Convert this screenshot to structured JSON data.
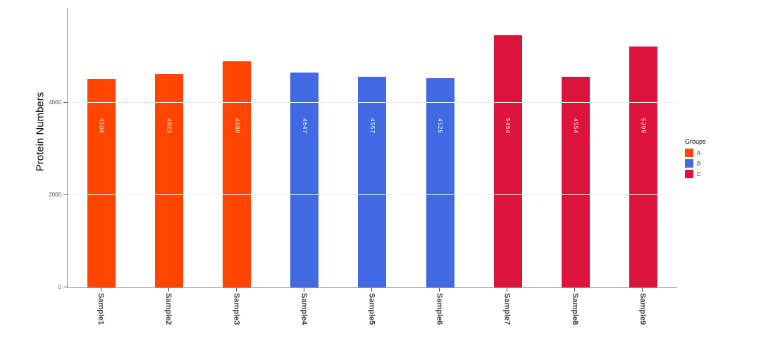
{
  "figure": {
    "ylabel": "Protein Numbers"
  },
  "chart_data": {
    "type": "bar",
    "title": "",
    "xlabel": "",
    "ylabel": "Protein Numbers",
    "categories": [
      "Sample1",
      "Sample2",
      "Sample3",
      "Sample4",
      "Sample5",
      "Sample6",
      "Sample7",
      "Sample8",
      "Sample9"
    ],
    "values": [
      4508,
      4623,
      4888,
      4647,
      4557,
      4526,
      5454,
      4554,
      5209
    ],
    "groups": [
      "A",
      "A",
      "A",
      "B",
      "B",
      "B",
      "C",
      "C",
      "C"
    ],
    "series_colors": {
      "A": "#FF4500",
      "B": "#4169E1",
      "C": "#DC143C"
    },
    "bar_value_labels": [
      "4508",
      "4623",
      "4888",
      "4647",
      "4557",
      "4526",
      "5454",
      "4554",
      "5209"
    ],
    "yticks": [
      0,
      2000,
      4000
    ],
    "ylim": [
      0,
      6030
    ],
    "grid": "faint-horizontal",
    "legend": {
      "position": "right",
      "title": "Groups",
      "entries": [
        {
          "label": "A",
          "color": "#FF4500"
        },
        {
          "label": "B",
          "color": "#4169E1"
        },
        {
          "label": "C",
          "color": "#DC143C"
        }
      ]
    }
  }
}
